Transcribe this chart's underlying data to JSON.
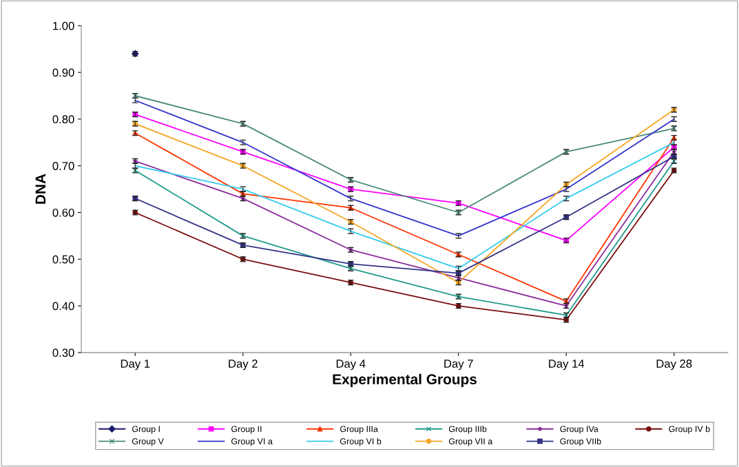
{
  "chart_data": {
    "type": "line",
    "xlabel": "Experimental Groups",
    "ylabel": "DNA",
    "categories": [
      "Day 1",
      "Day 2",
      "Day 4",
      "Day 7",
      "Day 14",
      "Day 28"
    ],
    "ylim": [
      0.3,
      1.0
    ],
    "yticks": [
      {
        "value": 0.3,
        "label": "0.30"
      },
      {
        "value": 0.4,
        "label": "0.40"
      },
      {
        "value": 0.5,
        "label": "0.50"
      },
      {
        "value": 0.6,
        "label": "0.60"
      },
      {
        "value": 0.7,
        "label": "0.70"
      },
      {
        "value": 0.8,
        "label": "0.80"
      },
      {
        "value": 0.9,
        "label": "0.90"
      },
      {
        "value": 1.0,
        "label": "1.00"
      }
    ],
    "grid": false,
    "legend": "bottom",
    "series": [
      {
        "name": "Group I",
        "color": "#1a1a6e",
        "marker": "diamond",
        "values": [
          0.94,
          null,
          null,
          null,
          null,
          null
        ],
        "errors": [
          0.005,
          null,
          null,
          null,
          null,
          null
        ]
      },
      {
        "name": "Group II",
        "color": "#ff00ff",
        "marker": "square",
        "values": [
          0.81,
          0.73,
          0.65,
          0.62,
          0.54,
          0.74
        ],
        "errors": [
          0.005,
          0.005,
          0.005,
          0.005,
          0.005,
          0.005
        ]
      },
      {
        "name": "Group IIIa",
        "color": "#ff3300",
        "marker": "triangle",
        "values": [
          0.77,
          0.64,
          0.61,
          0.51,
          0.41,
          0.76
        ],
        "errors": [
          0.005,
          0.005,
          0.005,
          0.005,
          0.005,
          0.005
        ]
      },
      {
        "name": "Group IIIb",
        "color": "#1f9a8a",
        "marker": "cross",
        "values": [
          0.69,
          0.55,
          0.48,
          0.42,
          0.38,
          0.71
        ],
        "errors": [
          0.005,
          0.005,
          0.005,
          0.005,
          0.005,
          0.005
        ]
      },
      {
        "name": "Group IVa",
        "color": "#8b2c9c",
        "marker": "star",
        "values": [
          0.71,
          0.63,
          0.52,
          0.46,
          0.4,
          0.73
        ],
        "errors": [
          0.005,
          0.005,
          0.005,
          0.005,
          0.005,
          0.005
        ]
      },
      {
        "name": "Group IV b",
        "color": "#7a0c0c",
        "marker": "circle",
        "values": [
          0.6,
          0.5,
          0.45,
          0.4,
          0.37,
          0.69
        ],
        "errors": [
          0.005,
          0.005,
          0.005,
          0.005,
          0.005,
          0.005
        ]
      },
      {
        "name": "Group V",
        "color": "#4a8a7a",
        "marker": "cross",
        "values": [
          0.85,
          0.79,
          0.67,
          0.6,
          0.73,
          0.78
        ],
        "errors": [
          0.005,
          0.005,
          0.005,
          0.005,
          0.005,
          0.005
        ]
      },
      {
        "name": "Group VI a",
        "color": "#3333cc",
        "marker": "none",
        "values": [
          0.84,
          0.75,
          0.63,
          0.55,
          0.65,
          0.8
        ],
        "errors": [
          0.005,
          0.005,
          0.005,
          0.005,
          0.005,
          0.005
        ]
      },
      {
        "name": "Group VI b",
        "color": "#33ccee",
        "marker": "none",
        "values": [
          0.7,
          0.65,
          0.56,
          0.48,
          0.63,
          0.75
        ],
        "errors": [
          0.005,
          0.005,
          0.005,
          0.005,
          0.005,
          0.005
        ]
      },
      {
        "name": "Group VII a",
        "color": "#f5a623",
        "marker": "circle",
        "values": [
          0.79,
          0.7,
          0.58,
          0.45,
          0.66,
          0.82
        ],
        "errors": [
          0.005,
          0.005,
          0.005,
          0.005,
          0.005,
          0.005
        ]
      },
      {
        "name": "Group VIIb",
        "color": "#333388",
        "marker": "square",
        "values": [
          0.63,
          0.53,
          0.49,
          0.47,
          0.59,
          0.72
        ],
        "errors": [
          0.005,
          0.005,
          0.005,
          0.005,
          0.005,
          0.005
        ]
      }
    ]
  }
}
